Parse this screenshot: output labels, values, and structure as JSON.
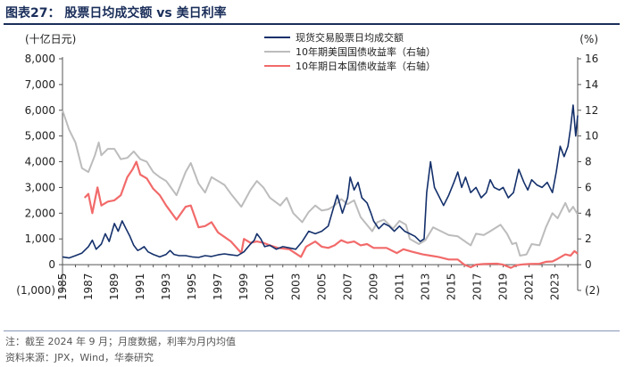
{
  "figure": {
    "title": "图表27： 股票日均成交额 vs 美日利率",
    "note": "注：截至 2024 年 9 月；月度数据，利率为月内均值",
    "source": "资料来源：JPX，Wind，华泰研究"
  },
  "chart_data": {
    "type": "line",
    "left_axis": {
      "label": "(十亿日元)",
      "range": [
        -1000,
        8000
      ],
      "ticks": [
        "(1,000)",
        "0",
        "1,000",
        "2,000",
        "3,000",
        "4,000",
        "5,000",
        "6,000",
        "7,000",
        "8,000"
      ]
    },
    "right_axis": {
      "label": "(%)",
      "range": [
        -2,
        16
      ],
      "ticks": [
        "(2)",
        "0",
        "2",
        "4",
        "6",
        "8",
        "10",
        "12",
        "14",
        "16"
      ]
    },
    "x_axis": {
      "range": [
        1985,
        2024.75
      ],
      "ticks": [
        "1985",
        "1987",
        "1989",
        "1991",
        "1993",
        "1995",
        "1997",
        "1999",
        "2001",
        "2003",
        "2005",
        "2007",
        "2009",
        "2011",
        "2013",
        "2015",
        "2017",
        "2019",
        "2021",
        "2023"
      ]
    },
    "legend_position": "top-right",
    "colors": {
      "turnover": "#14306b",
      "us10y": "#bcbcbc",
      "jp10y": "#f26a6a"
    },
    "series": [
      {
        "name": "现货交易股票日均成交额",
        "axis": "left",
        "points": [
          [
            1985.0,
            300
          ],
          [
            1985.5,
            260
          ],
          [
            1986.0,
            350
          ],
          [
            1986.5,
            450
          ],
          [
            1987.0,
            700
          ],
          [
            1987.3,
            950
          ],
          [
            1987.6,
            600
          ],
          [
            1988.0,
            800
          ],
          [
            1988.3,
            1200
          ],
          [
            1988.6,
            900
          ],
          [
            1989.0,
            1600
          ],
          [
            1989.3,
            1300
          ],
          [
            1989.6,
            1700
          ],
          [
            1989.9,
            1400
          ],
          [
            1990.2,
            1100
          ],
          [
            1990.5,
            750
          ],
          [
            1990.8,
            550
          ],
          [
            1991.0,
            600
          ],
          [
            1991.3,
            700
          ],
          [
            1991.6,
            500
          ],
          [
            1992.0,
            400
          ],
          [
            1992.5,
            300
          ],
          [
            1993.0,
            400
          ],
          [
            1993.3,
            550
          ],
          [
            1993.6,
            400
          ],
          [
            1994.0,
            350
          ],
          [
            1994.5,
            350
          ],
          [
            1995.0,
            300
          ],
          [
            1995.5,
            280
          ],
          [
            1996.0,
            350
          ],
          [
            1996.5,
            320
          ],
          [
            1997.0,
            380
          ],
          [
            1997.5,
            420
          ],
          [
            1998.0,
            380
          ],
          [
            1998.5,
            350
          ],
          [
            1999.0,
            500
          ],
          [
            1999.5,
            800
          ],
          [
            1999.8,
            950
          ],
          [
            2000.0,
            1200
          ],
          [
            2000.3,
            1000
          ],
          [
            2000.6,
            700
          ],
          [
            2001.0,
            750
          ],
          [
            2001.5,
            600
          ],
          [
            2002.0,
            700
          ],
          [
            2002.5,
            650
          ],
          [
            2003.0,
            600
          ],
          [
            2003.5,
            900
          ],
          [
            2004.0,
            1300
          ],
          [
            2004.5,
            1200
          ],
          [
            2005.0,
            1300
          ],
          [
            2005.5,
            1500
          ],
          [
            2005.9,
            2200
          ],
          [
            2006.2,
            2700
          ],
          [
            2006.6,
            2000
          ],
          [
            2007.0,
            2600
          ],
          [
            2007.2,
            3400
          ],
          [
            2007.5,
            2900
          ],
          [
            2007.8,
            3200
          ],
          [
            2008.1,
            2600
          ],
          [
            2008.5,
            2400
          ],
          [
            2008.8,
            2000
          ],
          [
            2009.0,
            1700
          ],
          [
            2009.4,
            1400
          ],
          [
            2009.8,
            1600
          ],
          [
            2010.2,
            1500
          ],
          [
            2010.6,
            1300
          ],
          [
            2011.0,
            1500
          ],
          [
            2011.4,
            1300
          ],
          [
            2011.8,
            1200
          ],
          [
            2012.2,
            1100
          ],
          [
            2012.6,
            900
          ],
          [
            2012.9,
            1000
          ],
          [
            2013.1,
            2800
          ],
          [
            2013.4,
            4000
          ],
          [
            2013.7,
            3000
          ],
          [
            2014.0,
            2700
          ],
          [
            2014.4,
            2300
          ],
          [
            2014.8,
            2700
          ],
          [
            2015.2,
            3200
          ],
          [
            2015.5,
            3600
          ],
          [
            2015.8,
            3000
          ],
          [
            2016.1,
            3400
          ],
          [
            2016.5,
            2800
          ],
          [
            2016.9,
            3000
          ],
          [
            2017.3,
            2600
          ],
          [
            2017.7,
            2800
          ],
          [
            2018.0,
            3300
          ],
          [
            2018.3,
            3000
          ],
          [
            2018.7,
            2900
          ],
          [
            2019.0,
            3000
          ],
          [
            2019.4,
            2600
          ],
          [
            2019.8,
            2800
          ],
          [
            2020.2,
            3700
          ],
          [
            2020.6,
            3200
          ],
          [
            2020.9,
            2900
          ],
          [
            2021.2,
            3300
          ],
          [
            2021.6,
            3100
          ],
          [
            2022.0,
            3000
          ],
          [
            2022.4,
            3200
          ],
          [
            2022.8,
            2800
          ],
          [
            2023.1,
            3600
          ],
          [
            2023.4,
            4600
          ],
          [
            2023.7,
            4200
          ],
          [
            2024.0,
            4600
          ],
          [
            2024.2,
            5300
          ],
          [
            2024.4,
            6200
          ],
          [
            2024.6,
            5000
          ],
          [
            2024.75,
            5800
          ]
        ]
      },
      {
        "name": "10年期美国国债收益率（右轴）",
        "axis": "right",
        "points": [
          [
            1985.0,
            12.0
          ],
          [
            1985.5,
            10.5
          ],
          [
            1986.0,
            9.5
          ],
          [
            1986.5,
            7.5
          ],
          [
            1987.0,
            7.2
          ],
          [
            1987.5,
            8.5
          ],
          [
            1987.8,
            9.5
          ],
          [
            1988.0,
            8.5
          ],
          [
            1988.5,
            9.0
          ],
          [
            1989.0,
            9.0
          ],
          [
            1989.5,
            8.2
          ],
          [
            1990.0,
            8.3
          ],
          [
            1990.5,
            8.8
          ],
          [
            1991.0,
            8.2
          ],
          [
            1991.5,
            8.0
          ],
          [
            1992.0,
            7.2
          ],
          [
            1992.5,
            6.8
          ],
          [
            1993.0,
            6.5
          ],
          [
            1993.8,
            5.4
          ],
          [
            1994.5,
            7.2
          ],
          [
            1994.9,
            7.9
          ],
          [
            1995.5,
            6.3
          ],
          [
            1996.0,
            5.6
          ],
          [
            1996.5,
            6.8
          ],
          [
            1997.0,
            6.5
          ],
          [
            1997.5,
            6.2
          ],
          [
            1998.0,
            5.5
          ],
          [
            1998.8,
            4.5
          ],
          [
            1999.5,
            5.8
          ],
          [
            2000.0,
            6.5
          ],
          [
            2000.5,
            6.0
          ],
          [
            2001.0,
            5.2
          ],
          [
            2001.8,
            4.6
          ],
          [
            2002.3,
            5.2
          ],
          [
            2002.8,
            4.0
          ],
          [
            2003.5,
            3.3
          ],
          [
            2004.0,
            4.1
          ],
          [
            2004.5,
            4.6
          ],
          [
            2005.0,
            4.2
          ],
          [
            2005.5,
            4.3
          ],
          [
            2006.0,
            4.6
          ],
          [
            2006.5,
            5.1
          ],
          [
            2007.0,
            4.7
          ],
          [
            2007.5,
            5.0
          ],
          [
            2008.0,
            3.7
          ],
          [
            2008.9,
            2.6
          ],
          [
            2009.3,
            3.3
          ],
          [
            2009.8,
            3.5
          ],
          [
            2010.5,
            2.8
          ],
          [
            2011.0,
            3.4
          ],
          [
            2011.5,
            3.1
          ],
          [
            2011.8,
            2.0
          ],
          [
            2012.5,
            1.6
          ],
          [
            2013.0,
            1.9
          ],
          [
            2013.6,
            2.9
          ],
          [
            2014.0,
            2.7
          ],
          [
            2014.8,
            2.3
          ],
          [
            2015.5,
            2.2
          ],
          [
            2016.5,
            1.5
          ],
          [
            2016.9,
            2.4
          ],
          [
            2017.5,
            2.3
          ],
          [
            2018.0,
            2.6
          ],
          [
            2018.8,
            3.1
          ],
          [
            2019.3,
            2.4
          ],
          [
            2019.7,
            1.6
          ],
          [
            2020.0,
            1.7
          ],
          [
            2020.3,
            0.7
          ],
          [
            2020.8,
            0.8
          ],
          [
            2021.2,
            1.6
          ],
          [
            2021.8,
            1.5
          ],
          [
            2022.3,
            2.9
          ],
          [
            2022.8,
            4.0
          ],
          [
            2023.2,
            3.6
          ],
          [
            2023.8,
            4.8
          ],
          [
            2024.1,
            4.1
          ],
          [
            2024.4,
            4.5
          ],
          [
            2024.75,
            3.9
          ]
        ]
      },
      {
        "name": "10年期日本国债收益率（右轴）",
        "axis": "right",
        "points": [
          [
            1986.7,
            5.2
          ],
          [
            1987.0,
            5.5
          ],
          [
            1987.3,
            4.0
          ],
          [
            1987.7,
            6.0
          ],
          [
            1988.0,
            4.6
          ],
          [
            1988.5,
            4.9
          ],
          [
            1989.0,
            5.0
          ],
          [
            1989.5,
            5.4
          ],
          [
            1990.0,
            6.8
          ],
          [
            1990.4,
            7.4
          ],
          [
            1990.7,
            8.0
          ],
          [
            1991.0,
            7.0
          ],
          [
            1991.5,
            6.7
          ],
          [
            1992.0,
            5.9
          ],
          [
            1992.5,
            5.4
          ],
          [
            1993.0,
            4.6
          ],
          [
            1993.8,
            3.5
          ],
          [
            1994.5,
            4.5
          ],
          [
            1994.9,
            4.6
          ],
          [
            1995.5,
            2.9
          ],
          [
            1996.0,
            3.0
          ],
          [
            1996.5,
            3.3
          ],
          [
            1997.0,
            2.5
          ],
          [
            1998.0,
            1.8
          ],
          [
            1998.8,
            0.9
          ],
          [
            1999.0,
            2.0
          ],
          [
            1999.5,
            1.7
          ],
          [
            2000.0,
            1.8
          ],
          [
            2000.5,
            1.7
          ],
          [
            2001.0,
            1.5
          ],
          [
            2001.6,
            1.3
          ],
          [
            2002.5,
            1.2
          ],
          [
            2003.4,
            0.6
          ],
          [
            2003.8,
            1.4
          ],
          [
            2004.5,
            1.8
          ],
          [
            2005.0,
            1.4
          ],
          [
            2005.5,
            1.3
          ],
          [
            2006.0,
            1.5
          ],
          [
            2006.5,
            1.9
          ],
          [
            2007.0,
            1.7
          ],
          [
            2007.5,
            1.8
          ],
          [
            2008.0,
            1.5
          ],
          [
            2008.5,
            1.6
          ],
          [
            2009.0,
            1.3
          ],
          [
            2010.0,
            1.3
          ],
          [
            2010.8,
            0.9
          ],
          [
            2011.3,
            1.2
          ],
          [
            2012.0,
            1.0
          ],
          [
            2012.8,
            0.8
          ],
          [
            2013.4,
            0.7
          ],
          [
            2014.0,
            0.6
          ],
          [
            2014.8,
            0.4
          ],
          [
            2015.5,
            0.4
          ],
          [
            2016.0,
            0.0
          ],
          [
            2016.5,
            -0.2
          ],
          [
            2016.9,
            0.0
          ],
          [
            2017.5,
            0.05
          ],
          [
            2018.5,
            0.08
          ],
          [
            2019.0,
            0.0
          ],
          [
            2019.6,
            -0.25
          ],
          [
            2020.0,
            -0.05
          ],
          [
            2020.5,
            0.02
          ],
          [
            2021.0,
            0.05
          ],
          [
            2021.8,
            0.07
          ],
          [
            2022.3,
            0.22
          ],
          [
            2022.8,
            0.25
          ],
          [
            2023.2,
            0.45
          ],
          [
            2023.8,
            0.8
          ],
          [
            2024.2,
            0.7
          ],
          [
            2024.5,
            1.05
          ],
          [
            2024.75,
            0.85
          ]
        ]
      }
    ]
  }
}
